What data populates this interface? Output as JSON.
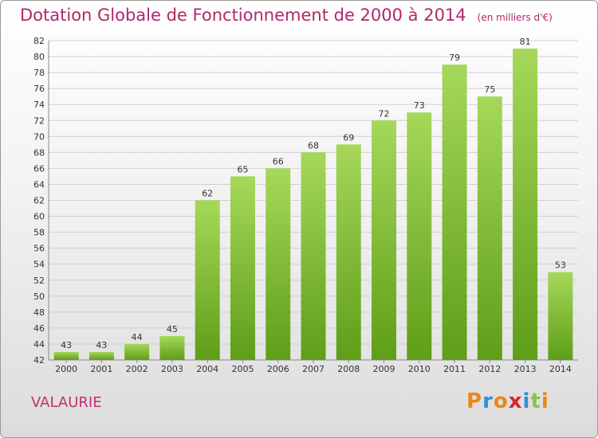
{
  "title": "Dotation Globale de Fonctionnement de 2000 à 2014",
  "subtitle": "(en milliers d'€)",
  "place": "VALAURIE",
  "logo": {
    "text": "Proxiti",
    "colors": [
      "#e8881a",
      "#2f8fd8",
      "#e8881a",
      "#d9262b",
      "#2f8fd8",
      "#8bc34a",
      "#e8881a"
    ]
  },
  "colors": {
    "title": "#b0286a",
    "bar_light": "#a6d85a",
    "bar_dark": "#5e9e18",
    "grid": "#cfcfcf"
  },
  "chart_data": {
    "type": "bar",
    "categories": [
      "2000",
      "2001",
      "2002",
      "2003",
      "2004",
      "2005",
      "2006",
      "2007",
      "2008",
      "2009",
      "2010",
      "2011",
      "2012",
      "2013",
      "2014"
    ],
    "values": [
      43,
      43,
      44,
      45,
      62,
      65,
      66,
      68,
      69,
      72,
      73,
      79,
      75,
      81,
      53
    ],
    "ylim": [
      42,
      82
    ],
    "yticks": [
      42,
      44,
      46,
      48,
      50,
      52,
      54,
      56,
      58,
      60,
      62,
      64,
      66,
      68,
      70,
      72,
      74,
      76,
      78,
      80,
      82
    ],
    "grid": true,
    "xlabel": "",
    "ylabel": ""
  }
}
